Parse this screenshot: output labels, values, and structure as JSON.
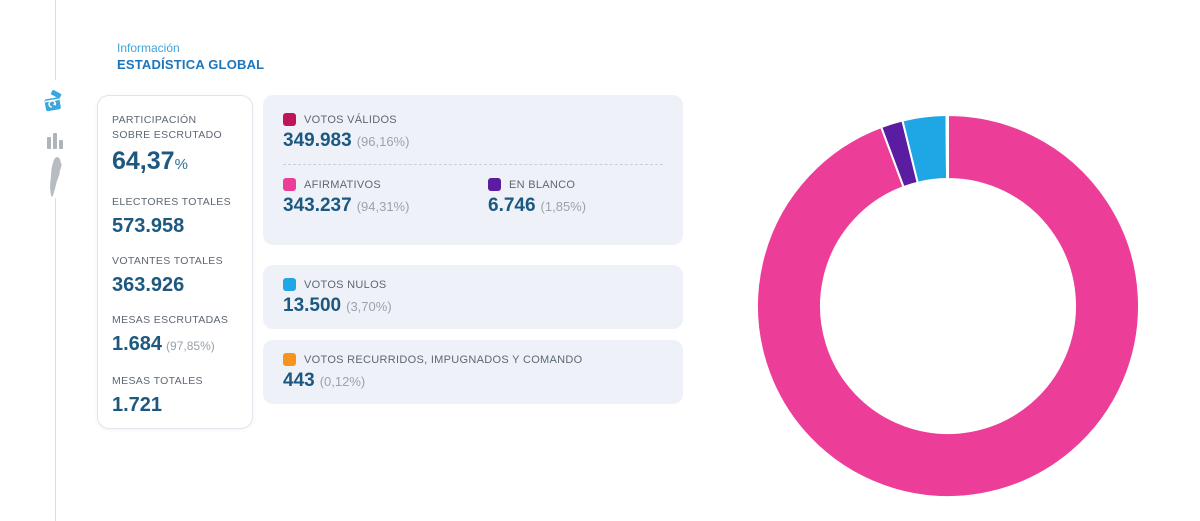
{
  "header": {
    "line1": "Información",
    "line2": "ESTADÍSTICA GLOBAL"
  },
  "sidebar": {
    "items": [
      {
        "name": "ballot-box",
        "active": true
      },
      {
        "name": "bar-chart",
        "active": false
      },
      {
        "name": "argentina-map",
        "active": false
      }
    ]
  },
  "summary_panel": {
    "stats": [
      {
        "label": "PARTICIPACIÓN SOBRE ESCRUTADO",
        "value": "64,37",
        "suffix": "%"
      },
      {
        "label": "ELECTORES TOTALES",
        "value": "573.958"
      },
      {
        "label": "VOTANTES TOTALES",
        "value": "363.926"
      },
      {
        "label": "MESAS ESCRUTADAS",
        "value": "1.684",
        "note": "(97,85%)"
      },
      {
        "label": "MESAS TOTALES",
        "value": "1.721"
      }
    ]
  },
  "votes": {
    "validos": {
      "label": "VOTOS VÁLIDOS",
      "value": "349.983",
      "pct": "(96,16%)",
      "color": "#c0145a"
    },
    "afirmativos": {
      "label": "AFIRMATIVOS",
      "value": "343.237",
      "pct": "(94,31%)",
      "color": "#ec3e98"
    },
    "blanco": {
      "label": "EN BLANCO",
      "value": "6.746",
      "pct": "(1,85%)",
      "color": "#5a1ca0"
    },
    "nulos": {
      "label": "VOTOS NULOS",
      "value": "13.500",
      "pct": "(3,70%)",
      "color": "#1fa6e5"
    },
    "recurridos": {
      "label": "VOTOS RECURRIDOS, IMPUGNADOS Y COMANDO",
      "value": "443",
      "pct": "(0,12%)",
      "color": "#f7941e"
    }
  },
  "chart_data": {
    "type": "pie",
    "donut": true,
    "start_angle_deg": 0,
    "direction": "clockwise",
    "inner_radius_ratio": 0.665,
    "legend_position": "none",
    "segments": [
      {
        "name": "AFIRMATIVOS",
        "value": 343237,
        "pct_label": "94,31%",
        "color": "#ec3e98"
      },
      {
        "name": "EN BLANCO",
        "value": 6746,
        "pct_label": "1,85%",
        "color": "#5a1ca0"
      },
      {
        "name": "VOTOS NULOS",
        "value": 13500,
        "pct_label": "3,70%",
        "color": "#1fa6e5"
      },
      {
        "name": "VOTOS RECURRIDOS, IMPUGNADOS Y COMANDO",
        "value": 443,
        "pct_label": "0,12%",
        "color": "#f7941e"
      }
    ]
  },
  "colors": {
    "accent_blue": "#3ea4db",
    "title_blue": "#1b76bd",
    "value_blue": "#1c5880",
    "label_gray": "#5d6773",
    "muted_gray": "#9aa2aa",
    "panel_bg": "#eef2f8",
    "rail_line": "#d9dde3",
    "icon_gray": "#afb4ba"
  }
}
